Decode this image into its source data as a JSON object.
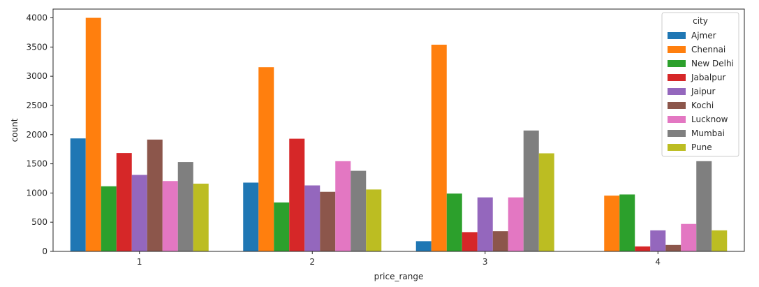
{
  "chart_data": {
    "type": "bar",
    "xlabel": "price_range",
    "ylabel": "count",
    "categories": [
      "1",
      "2",
      "3",
      "4"
    ],
    "ylim": [
      0,
      4150
    ],
    "yticks": [
      0,
      500,
      1000,
      1500,
      2000,
      2500,
      3000,
      3500,
      4000
    ],
    "grid": false,
    "legend": {
      "title": "city",
      "position": "top-right"
    },
    "series": [
      {
        "name": "Ajmer",
        "color": "#1f77b4",
        "values": [
          1935,
          1178,
          175,
          0
        ]
      },
      {
        "name": "Chennai",
        "color": "#ff7f0e",
        "values": [
          4000,
          3155,
          3540,
          955
        ]
      },
      {
        "name": "New Delhi",
        "color": "#2ca02c",
        "values": [
          1115,
          838,
          990,
          975
        ]
      },
      {
        "name": "Jabalpur",
        "color": "#d62728",
        "values": [
          1685,
          1930,
          330,
          85
        ]
      },
      {
        "name": "Jaipur",
        "color": "#9467bd",
        "values": [
          1310,
          1130,
          925,
          360
        ]
      },
      {
        "name": "Kochi",
        "color": "#8c564b",
        "values": [
          1915,
          1020,
          345,
          110
        ]
      },
      {
        "name": "Lucknow",
        "color": "#e377c2",
        "values": [
          1205,
          1545,
          925,
          470
        ]
      },
      {
        "name": "Mumbai",
        "color": "#7f7f7f",
        "values": [
          1530,
          1380,
          2070,
          1545
        ]
      },
      {
        "name": "Pune",
        "color": "#bcbd22",
        "values": [
          1160,
          1060,
          1680,
          360
        ]
      }
    ]
  }
}
